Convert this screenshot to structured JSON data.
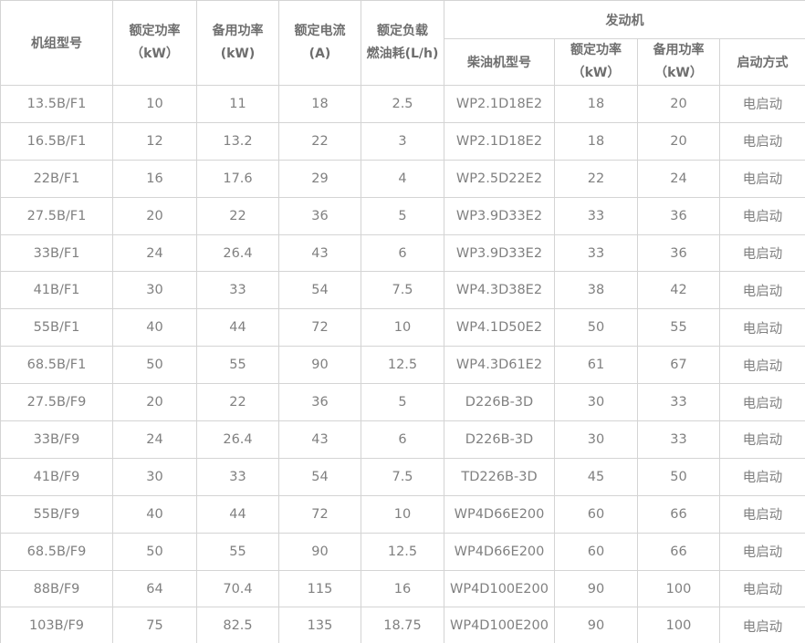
{
  "table": {
    "headers": {
      "unit_model": "机组型号",
      "rated_power_l1": "额定功率",
      "rated_power_l2": "（kW）",
      "standby_power_l1": "备用功率",
      "standby_power_l2": "(kW)",
      "rated_current_l1": "额定电流",
      "rated_current_l2": "(A)",
      "fuel_consumption_l1": "额定负载",
      "fuel_consumption_l2": "燃油耗(L/h)",
      "engine_group": "发动机",
      "engine_model": "柴油机型号",
      "engine_rated_power_l1": "额定功率",
      "engine_rated_power_l2": "（kW）",
      "engine_standby_power_l1": "备用功率",
      "engine_standby_power_l2": "（kW）",
      "start_mode": "启动方式"
    },
    "rows": [
      [
        "13.5B/F1",
        "10",
        "11",
        "18",
        "2.5",
        "WP2.1D18E2",
        "18",
        "20",
        "电启动"
      ],
      [
        "16.5B/F1",
        "12",
        "13.2",
        "22",
        "3",
        "WP2.1D18E2",
        "18",
        "20",
        "电启动"
      ],
      [
        "22B/F1",
        "16",
        "17.6",
        "29",
        "4",
        "WP2.5D22E2",
        "22",
        "24",
        "电启动"
      ],
      [
        "27.5B/F1",
        "20",
        "22",
        "36",
        "5",
        "WP3.9D33E2",
        "33",
        "36",
        "电启动"
      ],
      [
        "33B/F1",
        "24",
        "26.4",
        "43",
        "6",
        "WP3.9D33E2",
        "33",
        "36",
        "电启动"
      ],
      [
        "41B/F1",
        "30",
        "33",
        "54",
        "7.5",
        "WP4.3D38E2",
        "38",
        "42",
        "电启动"
      ],
      [
        "55B/F1",
        "40",
        "44",
        "72",
        "10",
        "WP4.1D50E2",
        "50",
        "55",
        "电启动"
      ],
      [
        "68.5B/F1",
        "50",
        "55",
        "90",
        "12.5",
        "WP4.3D61E2",
        "61",
        "67",
        "电启动"
      ],
      [
        "27.5B/F9",
        "20",
        "22",
        "36",
        "5",
        "D226B-3D",
        "30",
        "33",
        "电启动"
      ],
      [
        "33B/F9",
        "24",
        "26.4",
        "43",
        "6",
        "D226B-3D",
        "30",
        "33",
        "电启动"
      ],
      [
        "41B/F9",
        "30",
        "33",
        "54",
        "7.5",
        "TD226B-3D",
        "45",
        "50",
        "电启动"
      ],
      [
        "55B/F9",
        "40",
        "44",
        "72",
        "10",
        "WP4D66E200",
        "60",
        "66",
        "电启动"
      ],
      [
        "68.5B/F9",
        "50",
        "55",
        "90",
        "12.5",
        "WP4D66E200",
        "60",
        "66",
        "电启动"
      ],
      [
        "88B/F9",
        "64",
        "70.4",
        "115",
        "16",
        "WP4D100E200",
        "90",
        "100",
        "电启动"
      ],
      [
        "103B/F9",
        "75",
        "82.5",
        "135",
        "18.75",
        "WP4D100E200",
        "90",
        "100",
        "电启动"
      ]
    ]
  },
  "colors": {
    "border": "#d4d4d4",
    "body_text": "#808080",
    "header_text": "#6e6e6e",
    "background": "#ffffff"
  }
}
